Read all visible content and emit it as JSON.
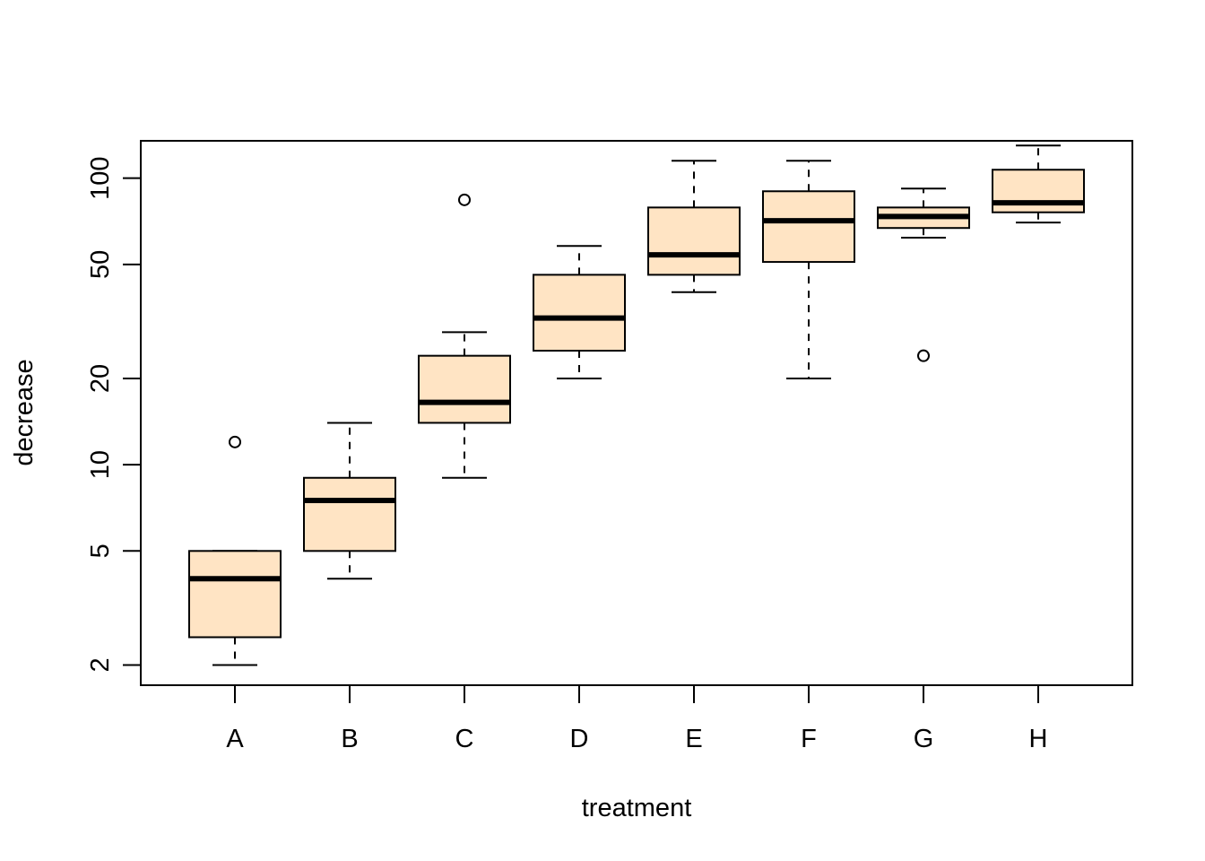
{
  "chart_data": {
    "type": "boxplot",
    "title": "",
    "xlabel": "treatment",
    "ylabel": "decrease",
    "y_scale": "log",
    "ylim": [
      1.7,
      135
    ],
    "y_ticks": [
      2,
      5,
      10,
      20,
      50,
      100
    ],
    "y_tick_labels": [
      "2",
      "5",
      "10",
      "20",
      "50",
      "100"
    ],
    "categories": [
      "A",
      "B",
      "C",
      "D",
      "E",
      "F",
      "G",
      "H"
    ],
    "box_fill": "#FFE4C4",
    "line_color": "#000000",
    "grid": false,
    "legend": "none",
    "boxes": [
      {
        "label": "A",
        "whisker_low": 2,
        "q1": 2.5,
        "median": 4,
        "q3": 5,
        "whisker_high": 5,
        "outliers": [
          12
        ]
      },
      {
        "label": "B",
        "whisker_low": 4,
        "q1": 5,
        "median": 7.5,
        "q3": 9,
        "whisker_high": 14,
        "outliers": []
      },
      {
        "label": "C",
        "whisker_low": 9,
        "q1": 14,
        "median": 16.5,
        "q3": 24,
        "whisker_high": 29,
        "outliers": [
          84
        ]
      },
      {
        "label": "D",
        "whisker_low": 20,
        "q1": 25,
        "median": 32.5,
        "q3": 46,
        "whisker_high": 58,
        "outliers": []
      },
      {
        "label": "E",
        "whisker_low": 40,
        "q1": 46,
        "median": 54,
        "q3": 79,
        "whisker_high": 115,
        "outliers": []
      },
      {
        "label": "F",
        "whisker_low": 20,
        "q1": 51,
        "median": 71,
        "q3": 90,
        "whisker_high": 115,
        "outliers": []
      },
      {
        "label": "G",
        "whisker_low": 62,
        "q1": 67,
        "median": 73.5,
        "q3": 79,
        "whisker_high": 92,
        "outliers": [
          24
        ]
      },
      {
        "label": "H",
        "whisker_low": 70,
        "q1": 76,
        "median": 82,
        "q3": 107,
        "whisker_high": 130,
        "outliers": []
      }
    ]
  }
}
